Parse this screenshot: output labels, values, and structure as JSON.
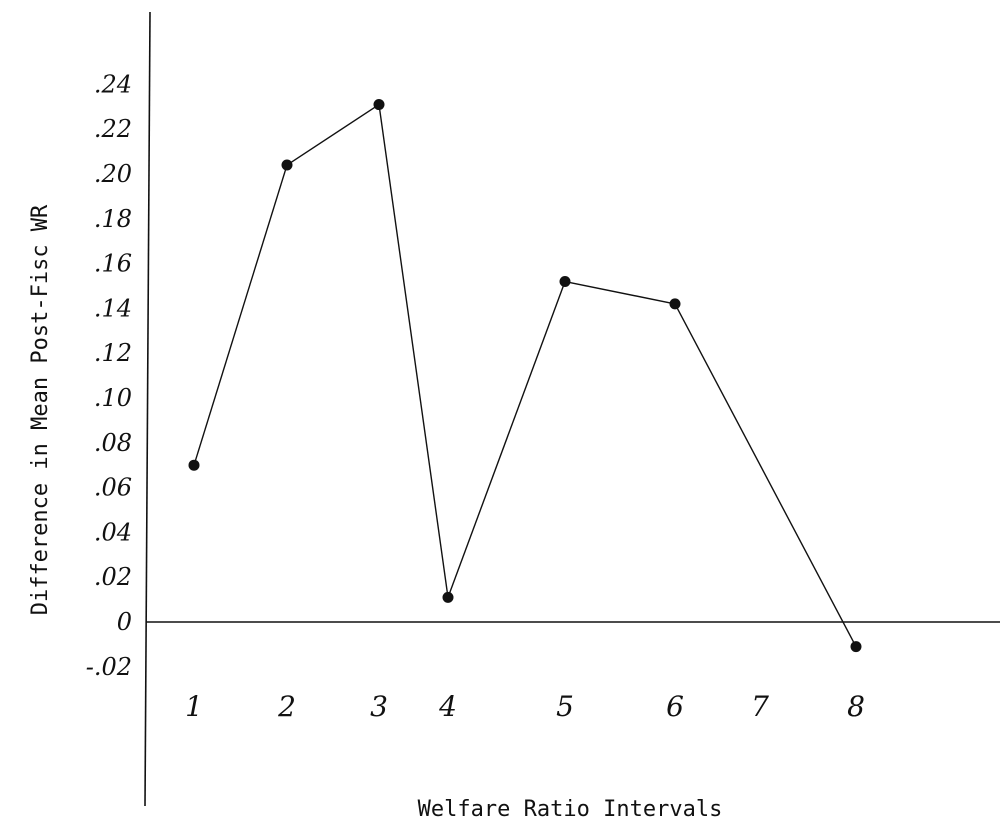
{
  "chart_data": {
    "type": "line",
    "title": "",
    "xlabel": "Welfare Ratio Intervals",
    "ylabel": "Difference in Mean Post-Fisc WR",
    "categories": [
      "1",
      "2",
      "3",
      "4",
      "5",
      "6",
      "7",
      "8"
    ],
    "x": [
      1,
      2,
      3,
      4,
      5,
      6,
      8
    ],
    "y": [
      0.07,
      0.204,
      0.231,
      0.011,
      0.152,
      0.142,
      -0.011
    ],
    "y_ticks": [
      {
        "value": 0.24,
        "label": ".24"
      },
      {
        "value": 0.22,
        "label": ".22"
      },
      {
        "value": 0.2,
        "label": ".20"
      },
      {
        "value": 0.18,
        "label": ".18"
      },
      {
        "value": 0.16,
        "label": ".16"
      },
      {
        "value": 0.14,
        "label": ".14"
      },
      {
        "value": 0.12,
        "label": ".12"
      },
      {
        "value": 0.1,
        "label": ".10"
      },
      {
        "value": 0.08,
        "label": ".08"
      },
      {
        "value": 0.06,
        "label": ".06"
      },
      {
        "value": 0.04,
        "label": ".04"
      },
      {
        "value": 0.02,
        "label": ".02"
      },
      {
        "value": 0,
        "label": "0"
      },
      {
        "value": -0.02,
        "label": "-.02"
      }
    ],
    "ylim": [
      -0.02,
      0.24
    ],
    "xlim": [
      1,
      8
    ],
    "grid": false,
    "legend": "none",
    "colors": {
      "line": "#111111",
      "marker": "#111111",
      "axis": "#111111"
    }
  }
}
